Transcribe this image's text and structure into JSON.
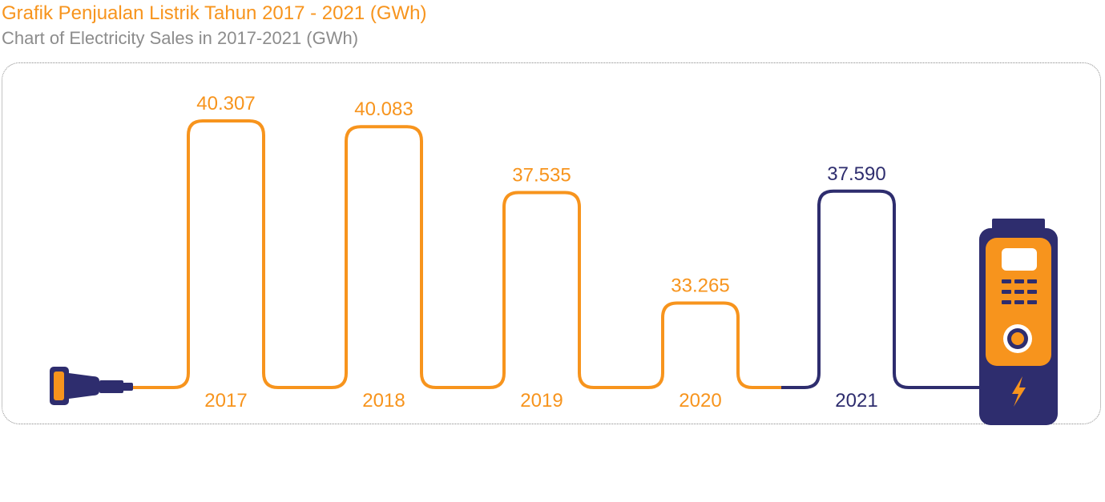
{
  "title": "Grafik Penjualan Listrik Tahun 2017 - 2021 (GWh)",
  "subtitle": "Chart of Electricity Sales in 2017-2021 (GWh)",
  "colors": {
    "orange": "#F7941D",
    "navy": "#2E2D6E",
    "gray": "#8C8C8C",
    "light": "#FFFFFF"
  },
  "icons": {
    "plug": "plug-icon",
    "charger": "charging-station-icon",
    "bolt": "lightning-bolt-icon"
  },
  "chart_data": {
    "type": "bar",
    "title": "Grafik Penjualan Listrik Tahun 2017 - 2021 (GWh)",
    "subtitle": "Chart of Electricity Sales in 2017-2021 (GWh)",
    "categories": [
      "2017",
      "2018",
      "2019",
      "2020",
      "2021"
    ],
    "values": [
      40307,
      40083,
      37535,
      33265,
      37590
    ],
    "value_labels": [
      "40.307",
      "40.083",
      "37.535",
      "33.265",
      "37.590"
    ],
    "unit": "GWh",
    "highlight_index": 4,
    "grid": false,
    "legend": "none"
  }
}
